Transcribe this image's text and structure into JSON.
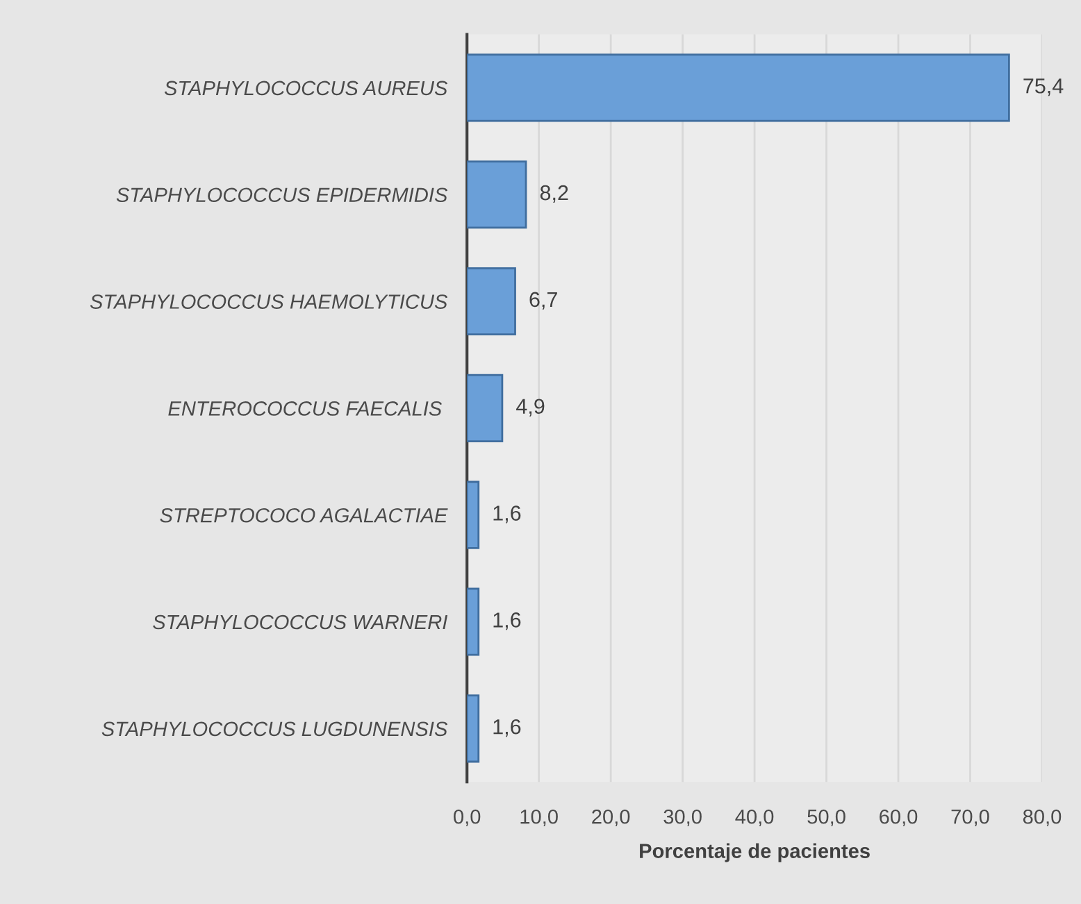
{
  "chart_data": {
    "type": "bar",
    "orientation": "horizontal",
    "categories": [
      "STAPHYLOCOCCUS AUREUS",
      "STAPHYLOCOCCUS EPIDERMIDIS",
      "STAPHYLOCOCCUS HAEMOLYTICUS",
      "ENTEROCOCCUS FAECALIS ",
      "STREPTOCOCO AGALACTIAE",
      "STAPHYLOCOCCUS WARNERI",
      "STAPHYLOCOCCUS LUGDUNENSIS"
    ],
    "values": [
      75.4,
      8.2,
      6.7,
      4.9,
      1.6,
      1.6,
      1.6
    ],
    "value_labels": [
      "75,4",
      "8,2",
      "6,7",
      "4,9",
      "1,6",
      "1,6",
      "1,6"
    ],
    "color": "#6a9fd8",
    "xlabel": "Porcentaje de pacientes",
    "xlim": [
      0,
      80
    ],
    "xticks": [
      {
        "value": 0,
        "label": "0,0"
      },
      {
        "value": 10,
        "label": "10,0"
      },
      {
        "value": 20,
        "label": "20,0"
      },
      {
        "value": 30,
        "label": "30,0"
      },
      {
        "value": 40,
        "label": "40,0"
      },
      {
        "value": 50,
        "label": "50,0"
      },
      {
        "value": 60,
        "label": "60,0"
      },
      {
        "value": 70,
        "label": "70,0"
      },
      {
        "value": 80,
        "label": "80,0"
      }
    ],
    "grid": "x",
    "legend": false
  }
}
